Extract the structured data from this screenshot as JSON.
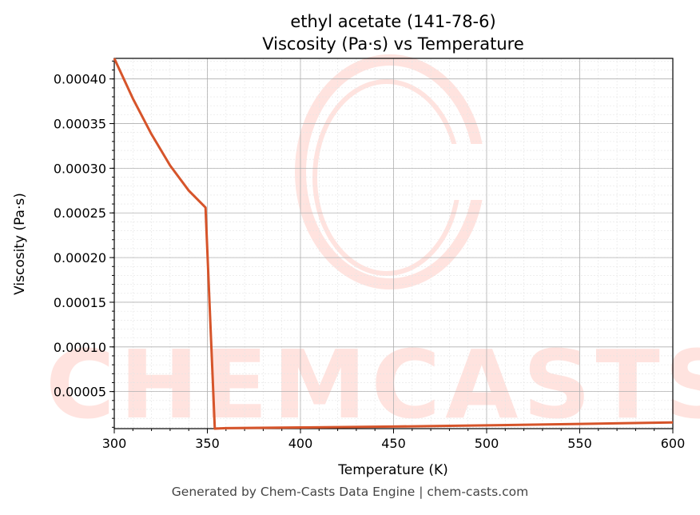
{
  "chart_data": {
    "type": "line",
    "title": "ethyl acetate (141-78-6)",
    "subtitle": "Viscosity (Pa·s) vs Temperature",
    "xlabel": "Temperature (K)",
    "ylabel": "Viscosity (Pa·s)",
    "xlim": [
      300,
      600
    ],
    "ylim": [
      8.5e-06,
      0.000423
    ],
    "x_ticks": [
      "300",
      "350",
      "400",
      "450",
      "500",
      "550",
      "600"
    ],
    "y_ticks": [
      "0.00005",
      "0.00010",
      "0.00015",
      "0.00020",
      "0.00025",
      "0.00030",
      "0.00035",
      "0.00040"
    ],
    "grid": true,
    "line_color": "#d6542a",
    "x": [
      300,
      310,
      320,
      330,
      340,
      349,
      354,
      360,
      400,
      450,
      500,
      550,
      600
    ],
    "y": [
      0.000423,
      0.000378,
      0.000338,
      0.000303,
      0.000275,
      0.000256,
      8.5e-06,
      9e-06,
      9.8e-06,
      1.08e-05,
      1.22e-05,
      1.38e-05,
      1.55e-05
    ]
  },
  "watermark": "CHEMCASTS",
  "footer": "Generated by Chem-Casts Data Engine | chem-casts.com"
}
